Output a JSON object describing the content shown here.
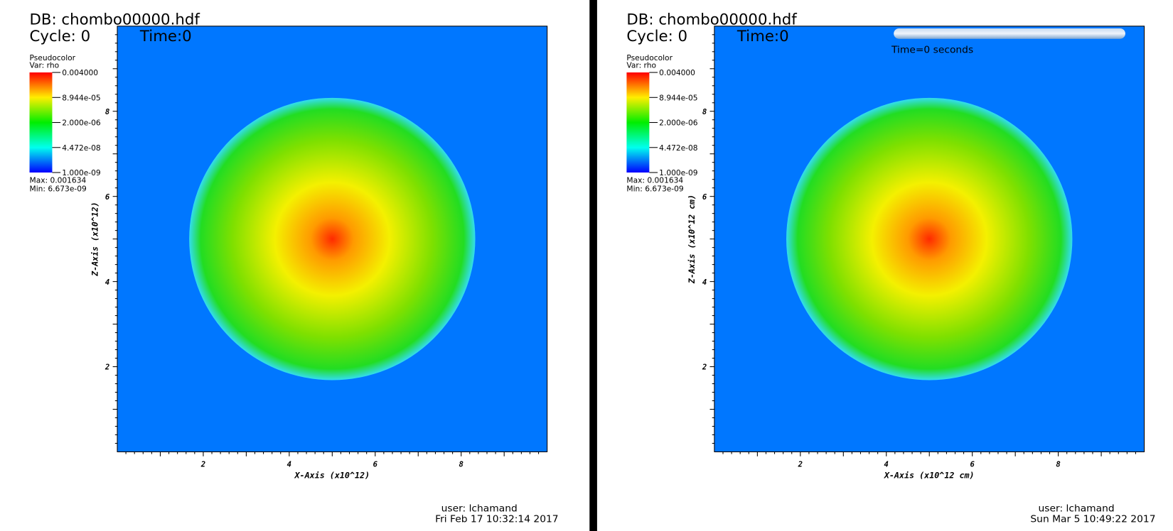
{
  "panels": [
    {
      "db": "DB: chombo00000.hdf",
      "cycle": "Cycle: 0",
      "time": "Time:0",
      "legend": {
        "title": "Pseudocolor",
        "var": "Var: rho",
        "labels": [
          "0.004000",
          "8.944e-05",
          "2.000e-06",
          "4.472e-08",
          "1.000e-09"
        ],
        "max": "Max: 0.001634",
        "min": "Min: 6.673e-09"
      },
      "x_axis": "X-Axis (x10^12)",
      "z_axis": "Z-Axis (x10^12)",
      "xticks": [
        "2",
        "4",
        "6",
        "8"
      ],
      "zticks": [
        "2",
        "4",
        "6",
        "8"
      ],
      "user": "user: lchamand",
      "date": "Fri Feb 17 10:32:14 2017"
    },
    {
      "db": "DB: chombo00000.hdf",
      "cycle": "Cycle: 0",
      "time": "Time:0",
      "time_slider": "Time=0 seconds",
      "legend": {
        "title": "Pseudocolor",
        "var": "Var: rho",
        "labels": [
          "0.004000",
          "8.944e-05",
          "2.000e-06",
          "4.472e-08",
          "1.000e-09"
        ],
        "max": "Max: 0.001634",
        "min": "Min: 6.673e-09"
      },
      "x_axis": "X-Axis (x10^12 cm)",
      "z_axis": "Z-Axis (x10^12 cm)",
      "xticks": [
        "2",
        "4",
        "6",
        "8"
      ],
      "zticks": [
        "2",
        "4",
        "6",
        "8"
      ],
      "user": "user: lchamand",
      "date": "Sun Mar  5 10:49:22 2017"
    }
  ]
}
